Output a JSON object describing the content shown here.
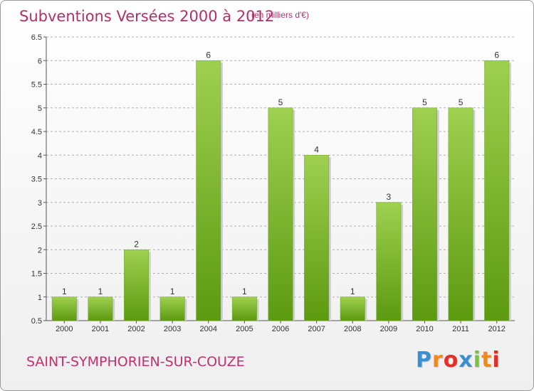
{
  "header": {
    "title": "Subventions Versées 2000 à 2012",
    "unit": "(en milliers d'€)"
  },
  "footer": {
    "commune": "SAINT-SYMPHORIEN-SUR-COUZE",
    "brand_letters": [
      "P",
      "r",
      "o",
      "x",
      "i",
      "t",
      "i"
    ],
    "brand_colors": [
      "#3a8fd0",
      "#f08a1c",
      "#e0302a",
      "#3a8fd0",
      "#7ac043",
      "#f08a1c",
      "#e0302a"
    ]
  },
  "colors": {
    "title": "#b0306a",
    "bar_top": "#9fd050",
    "bar_bottom": "#5c9a10",
    "grid": "#b0b0b0"
  },
  "chart_data": {
    "type": "bar",
    "title": "Subventions Versées 2000 à 2012",
    "subtitle": "(en milliers d'€)",
    "xlabel": "",
    "ylabel": "",
    "categories": [
      "2000",
      "2001",
      "2002",
      "2003",
      "2004",
      "2005",
      "2006",
      "2007",
      "2008",
      "2009",
      "2010",
      "2011",
      "2012"
    ],
    "values": [
      1,
      1,
      2,
      1,
      6,
      1,
      5,
      4,
      1,
      3,
      5,
      5,
      6
    ],
    "data_labels": [
      "1",
      "1",
      "2",
      "1",
      "6",
      "1",
      "5",
      "4",
      "1",
      "3",
      "5",
      "5",
      "6"
    ],
    "yticks": [
      "0.5",
      "1",
      "1.5",
      "2",
      "2.5",
      "3",
      "3.5",
      "4",
      "4.5",
      "5",
      "5.5",
      "6",
      "6.5"
    ],
    "ylim": [
      0.5,
      6.5
    ],
    "grid": "horizontal dashed",
    "legend": "none"
  }
}
